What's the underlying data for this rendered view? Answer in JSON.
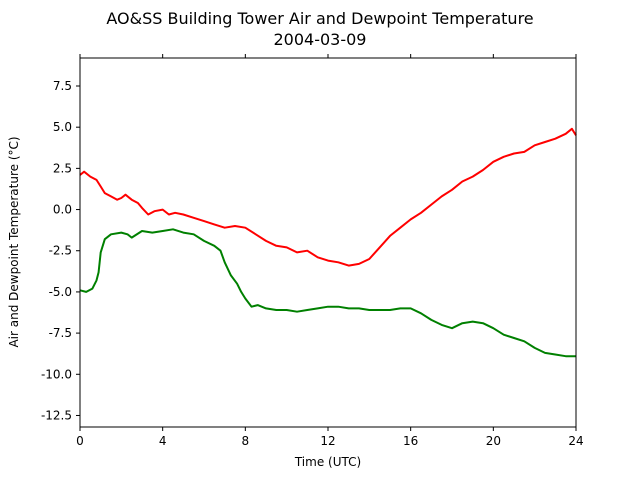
{
  "chart_data": {
    "type": "line",
    "title": "AO&SS Building Tower Air and Dewpoint Temperature",
    "subtitle": "2004-03-09",
    "xlabel": "Time (UTC)",
    "ylabel": "Air and Dewpoint Temperature (°C)",
    "xlim": [
      0,
      24
    ],
    "ylim": [
      -13.2,
      9.2
    ],
    "x_ticks": [
      0,
      4,
      8,
      12,
      16,
      20,
      24
    ],
    "y_ticks": [
      -12.5,
      -10.0,
      -7.5,
      -5.0,
      -2.5,
      0.0,
      2.5,
      5.0,
      7.5
    ],
    "grid": false,
    "series": [
      {
        "color": "#ff0000",
        "points": [
          [
            0.0,
            2.1
          ],
          [
            0.2,
            2.3
          ],
          [
            0.5,
            2.0
          ],
          [
            0.8,
            1.8
          ],
          [
            1.0,
            1.4
          ],
          [
            1.2,
            1.0
          ],
          [
            1.5,
            0.8
          ],
          [
            1.8,
            0.6
          ],
          [
            2.0,
            0.7
          ],
          [
            2.2,
            0.9
          ],
          [
            2.5,
            0.6
          ],
          [
            2.8,
            0.4
          ],
          [
            3.0,
            0.1
          ],
          [
            3.3,
            -0.3
          ],
          [
            3.6,
            -0.1
          ],
          [
            4.0,
            0.0
          ],
          [
            4.3,
            -0.3
          ],
          [
            4.6,
            -0.2
          ],
          [
            5.0,
            -0.3
          ],
          [
            5.5,
            -0.5
          ],
          [
            6.0,
            -0.7
          ],
          [
            6.5,
            -0.9
          ],
          [
            7.0,
            -1.1
          ],
          [
            7.5,
            -1.0
          ],
          [
            8.0,
            -1.1
          ],
          [
            8.5,
            -1.5
          ],
          [
            9.0,
            -1.9
          ],
          [
            9.5,
            -2.2
          ],
          [
            10.0,
            -2.3
          ],
          [
            10.5,
            -2.6
          ],
          [
            11.0,
            -2.5
          ],
          [
            11.5,
            -2.9
          ],
          [
            12.0,
            -3.1
          ],
          [
            12.5,
            -3.2
          ],
          [
            13.0,
            -3.4
          ],
          [
            13.5,
            -3.3
          ],
          [
            14.0,
            -3.0
          ],
          [
            14.5,
            -2.3
          ],
          [
            15.0,
            -1.6
          ],
          [
            15.5,
            -1.1
          ],
          [
            16.0,
            -0.6
          ],
          [
            16.5,
            -0.2
          ],
          [
            17.0,
            0.3
          ],
          [
            17.5,
            0.8
          ],
          [
            18.0,
            1.2
          ],
          [
            18.5,
            1.7
          ],
          [
            19.0,
            2.0
          ],
          [
            19.5,
            2.4
          ],
          [
            20.0,
            2.9
          ],
          [
            20.5,
            3.2
          ],
          [
            21.0,
            3.4
          ],
          [
            21.5,
            3.5
          ],
          [
            22.0,
            3.9
          ],
          [
            22.5,
            4.1
          ],
          [
            23.0,
            4.3
          ],
          [
            23.5,
            4.6
          ],
          [
            23.8,
            4.9
          ],
          [
            24.0,
            4.5
          ]
        ]
      },
      {
        "color": "#008000",
        "points": [
          [
            0.0,
            -4.9
          ],
          [
            0.3,
            -5.0
          ],
          [
            0.6,
            -4.8
          ],
          [
            0.8,
            -4.3
          ],
          [
            0.9,
            -3.8
          ],
          [
            1.0,
            -2.6
          ],
          [
            1.2,
            -1.8
          ],
          [
            1.5,
            -1.5
          ],
          [
            2.0,
            -1.4
          ],
          [
            2.3,
            -1.5
          ],
          [
            2.5,
            -1.7
          ],
          [
            3.0,
            -1.3
          ],
          [
            3.5,
            -1.4
          ],
          [
            4.0,
            -1.3
          ],
          [
            4.5,
            -1.2
          ],
          [
            5.0,
            -1.4
          ],
          [
            5.5,
            -1.5
          ],
          [
            6.0,
            -1.9
          ],
          [
            6.5,
            -2.2
          ],
          [
            6.8,
            -2.5
          ],
          [
            7.0,
            -3.2
          ],
          [
            7.3,
            -4.0
          ],
          [
            7.6,
            -4.5
          ],
          [
            7.8,
            -5.0
          ],
          [
            8.0,
            -5.4
          ],
          [
            8.3,
            -5.9
          ],
          [
            8.6,
            -5.8
          ],
          [
            9.0,
            -6.0
          ],
          [
            9.5,
            -6.1
          ],
          [
            10.0,
            -6.1
          ],
          [
            10.5,
            -6.2
          ],
          [
            11.0,
            -6.1
          ],
          [
            11.5,
            -6.0
          ],
          [
            12.0,
            -5.9
          ],
          [
            12.5,
            -5.9
          ],
          [
            13.0,
            -6.0
          ],
          [
            13.5,
            -6.0
          ],
          [
            14.0,
            -6.1
          ],
          [
            14.5,
            -6.1
          ],
          [
            15.0,
            -6.1
          ],
          [
            15.5,
            -6.0
          ],
          [
            16.0,
            -6.0
          ],
          [
            16.5,
            -6.3
          ],
          [
            17.0,
            -6.7
          ],
          [
            17.5,
            -7.0
          ],
          [
            18.0,
            -7.2
          ],
          [
            18.5,
            -6.9
          ],
          [
            19.0,
            -6.8
          ],
          [
            19.5,
            -6.9
          ],
          [
            20.0,
            -7.2
          ],
          [
            20.5,
            -7.6
          ],
          [
            21.0,
            -7.8
          ],
          [
            21.5,
            -8.0
          ],
          [
            22.0,
            -8.4
          ],
          [
            22.5,
            -8.7
          ],
          [
            23.0,
            -8.8
          ],
          [
            23.5,
            -8.9
          ],
          [
            24.0,
            -8.9
          ]
        ]
      }
    ]
  }
}
